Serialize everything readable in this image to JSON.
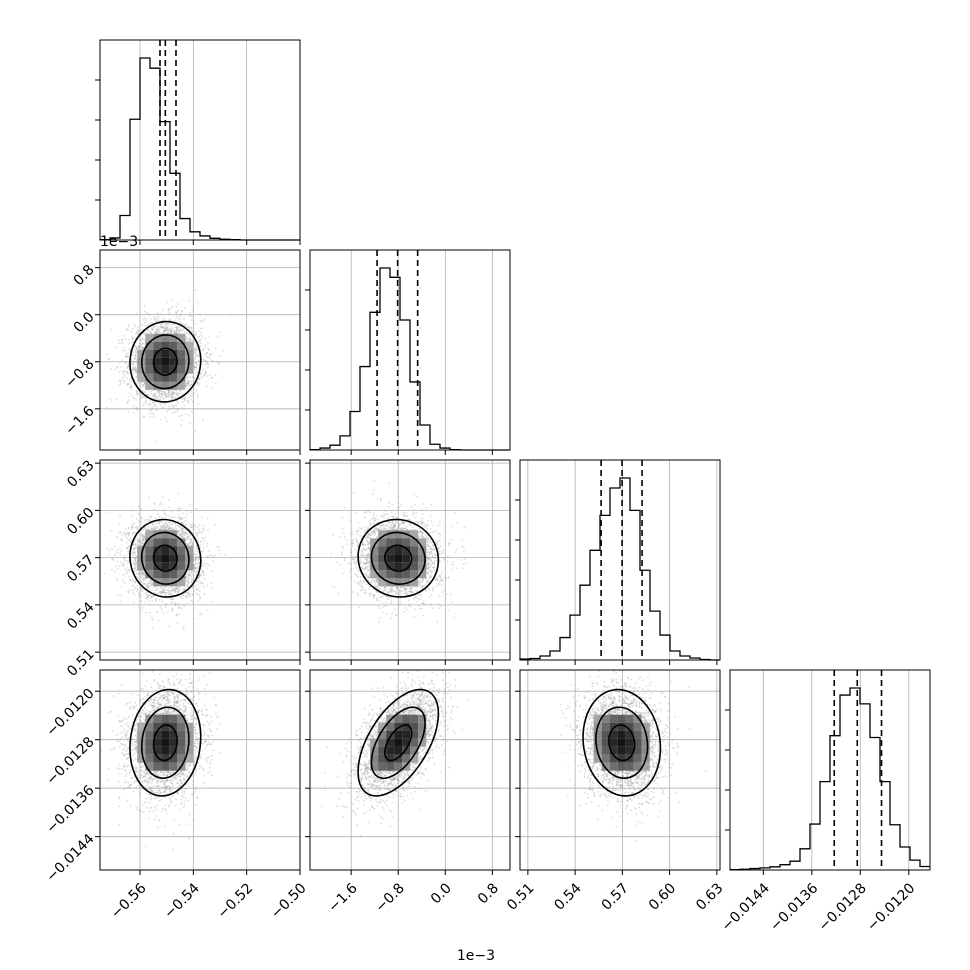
{
  "figure": {
    "type": "corner-plot",
    "background": "#ffffff"
  },
  "style": {
    "grid_color": "#b0b0b0",
    "frame_color": "#000000",
    "hist_color": "#000000",
    "contour_color": "#000000",
    "point_color": "#9e9e9e"
  },
  "parameters": [
    {
      "index": 0,
      "range": [
        -0.575,
        -0.5
      ],
      "ticks": [
        -0.56,
        -0.54,
        -0.52,
        -0.5
      ],
      "tick_labels": [
        "−0.56",
        "−0.54",
        "−0.52",
        "−0.50"
      ],
      "offset_label": "",
      "mean": -0.5505,
      "std": 0.0068,
      "quantiles": [
        -0.5525,
        -0.5505,
        -0.5465
      ]
    },
    {
      "index": 1,
      "range": [
        -0.0023,
        0.0011
      ],
      "ticks": [
        -0.0016,
        -0.0008,
        0.0,
        0.0008
      ],
      "tick_labels": [
        "−1.6",
        "−0.8",
        "0.0",
        "0.8"
      ],
      "offset_label": "1e−3",
      "mean": -0.0008,
      "std": 0.00035,
      "quantiles": [
        -0.00116,
        -0.00081,
        -0.00047
      ]
    },
    {
      "index": 2,
      "range": [
        0.505,
        0.632
      ],
      "ticks": [
        0.51,
        0.54,
        0.57,
        0.6,
        0.63
      ],
      "tick_labels": [
        "0.51",
        "0.54",
        "0.57",
        "0.60",
        "0.63"
      ],
      "offset_label": "",
      "mean": 0.5696,
      "std": 0.0126,
      "quantiles": [
        0.5565,
        0.5698,
        0.5825
      ]
    },
    {
      "index": 3,
      "range": [
        -0.01495,
        -0.01165
      ],
      "ticks": [
        -0.0144,
        -0.0136,
        -0.0128,
        -0.012
      ],
      "tick_labels": [
        "−0.0144",
        "−0.0136",
        "−0.0128",
        "−0.0120"
      ],
      "offset_label": "",
      "mean": -0.01285,
      "std": 0.00045,
      "quantiles": [
        -0.01323,
        -0.01285,
        -0.01245
      ]
    }
  ],
  "correlations": {
    "1-0": 0.03,
    "2-0": -0.05,
    "2-1": -0.05,
    "3-0": 0.1,
    "3-1": 0.55,
    "3-2": -0.1
  },
  "chart_data": {
    "type": "corner",
    "histograms": [
      {
        "param": 0,
        "bin_edges": [
          -0.575,
          -0.57125,
          -0.5675,
          -0.56375,
          -0.56,
          -0.55625,
          -0.5525,
          -0.54875,
          -0.545,
          -0.54125,
          -0.5375,
          -0.53375,
          -0.53,
          -0.52625,
          -0.5225,
          -0.51875,
          -0.515,
          -0.51125,
          -0.5075,
          -0.50375,
          -0.5
        ],
        "counts": [
          1,
          6,
          72,
          355,
          535,
          505,
          348,
          196,
          63,
          24,
          12,
          5,
          2,
          1,
          0,
          0,
          0,
          0,
          0,
          0
        ],
        "quantile_lines": [
          -0.5525,
          -0.5505,
          -0.5465
        ]
      },
      {
        "param": 1,
        "bin_edges": [
          -0.0023,
          -0.00213,
          -0.00196,
          -0.00179,
          -0.00162,
          -0.00145,
          -0.00128,
          -0.00111,
          -0.00094,
          -0.00077,
          -0.0006,
          -0.00043,
          -0.00026,
          -9e-05,
          8e-05,
          0.00025,
          0.00042,
          0.00059,
          0.00076,
          0.00093,
          0.0011
        ],
        "counts": [
          1,
          6,
          15,
          44,
          120,
          260,
          429,
          567,
          538,
          405,
          212,
          78,
          18,
          6,
          1,
          0,
          0,
          0,
          0,
          0
        ],
        "quantile_lines": [
          -0.00116,
          -0.00081,
          -0.00047
        ]
      },
      {
        "param": 2,
        "bin_edges": [
          0.505,
          0.51135,
          0.5177,
          0.52405,
          0.5304,
          0.53675,
          0.5431,
          0.54945,
          0.5558,
          0.56215,
          0.5685,
          0.57485,
          0.5812,
          0.58755,
          0.5939,
          0.60025,
          0.6066,
          0.61295,
          0.6193,
          0.62565,
          0.632
        ],
        "counts": [
          2,
          3,
          8,
          18,
          45,
          90,
          150,
          220,
          290,
          345,
          365,
          300,
          180,
          98,
          50,
          18,
          8,
          4,
          1,
          0
        ],
        "quantile_lines": [
          0.5565,
          0.5698,
          0.5825
        ]
      },
      {
        "param": 3,
        "bin_edges": [
          -0.01495,
          -0.014785,
          -0.01462,
          -0.014455,
          -0.01429,
          -0.014125,
          -0.01396,
          -0.013795,
          -0.01363,
          -0.013465,
          -0.0133,
          -0.013135,
          -0.01297,
          -0.012805,
          -0.01264,
          -0.012475,
          -0.01231,
          -0.012145,
          -0.01198,
          -0.011815,
          -0.01165
        ],
        "counts": [
          1,
          2,
          4,
          6,
          9,
          15,
          25,
          60,
          130,
          250,
          380,
          495,
          515,
          470,
          375,
          250,
          128,
          65,
          28,
          10
        ],
        "quantile_lines": [
          -0.01323,
          -0.01285,
          -0.01245
        ]
      }
    ],
    "scatter_panels": [
      {
        "x_param": 0,
        "y_param": 1,
        "n_points": 3000,
        "contour_levels": [
          0.5,
          1.0,
          1.5
        ]
      },
      {
        "x_param": 0,
        "y_param": 2,
        "n_points": 3000,
        "contour_levels": [
          0.5,
          1.0,
          1.5
        ]
      },
      {
        "x_param": 1,
        "y_param": 2,
        "n_points": 3000,
        "contour_levels": [
          0.5,
          1.0,
          1.5
        ]
      },
      {
        "x_param": 0,
        "y_param": 3,
        "n_points": 3000,
        "contour_levels": [
          0.5,
          1.0,
          1.5
        ]
      },
      {
        "x_param": 1,
        "y_param": 3,
        "n_points": 3000,
        "contour_levels": [
          0.5,
          1.0,
          1.5
        ]
      },
      {
        "x_param": 2,
        "y_param": 3,
        "n_points": 3000,
        "contour_levels": [
          0.5,
          1.0,
          1.5
        ]
      }
    ],
    "grid": true,
    "title": "",
    "xlabel": "",
    "ylabel": ""
  }
}
